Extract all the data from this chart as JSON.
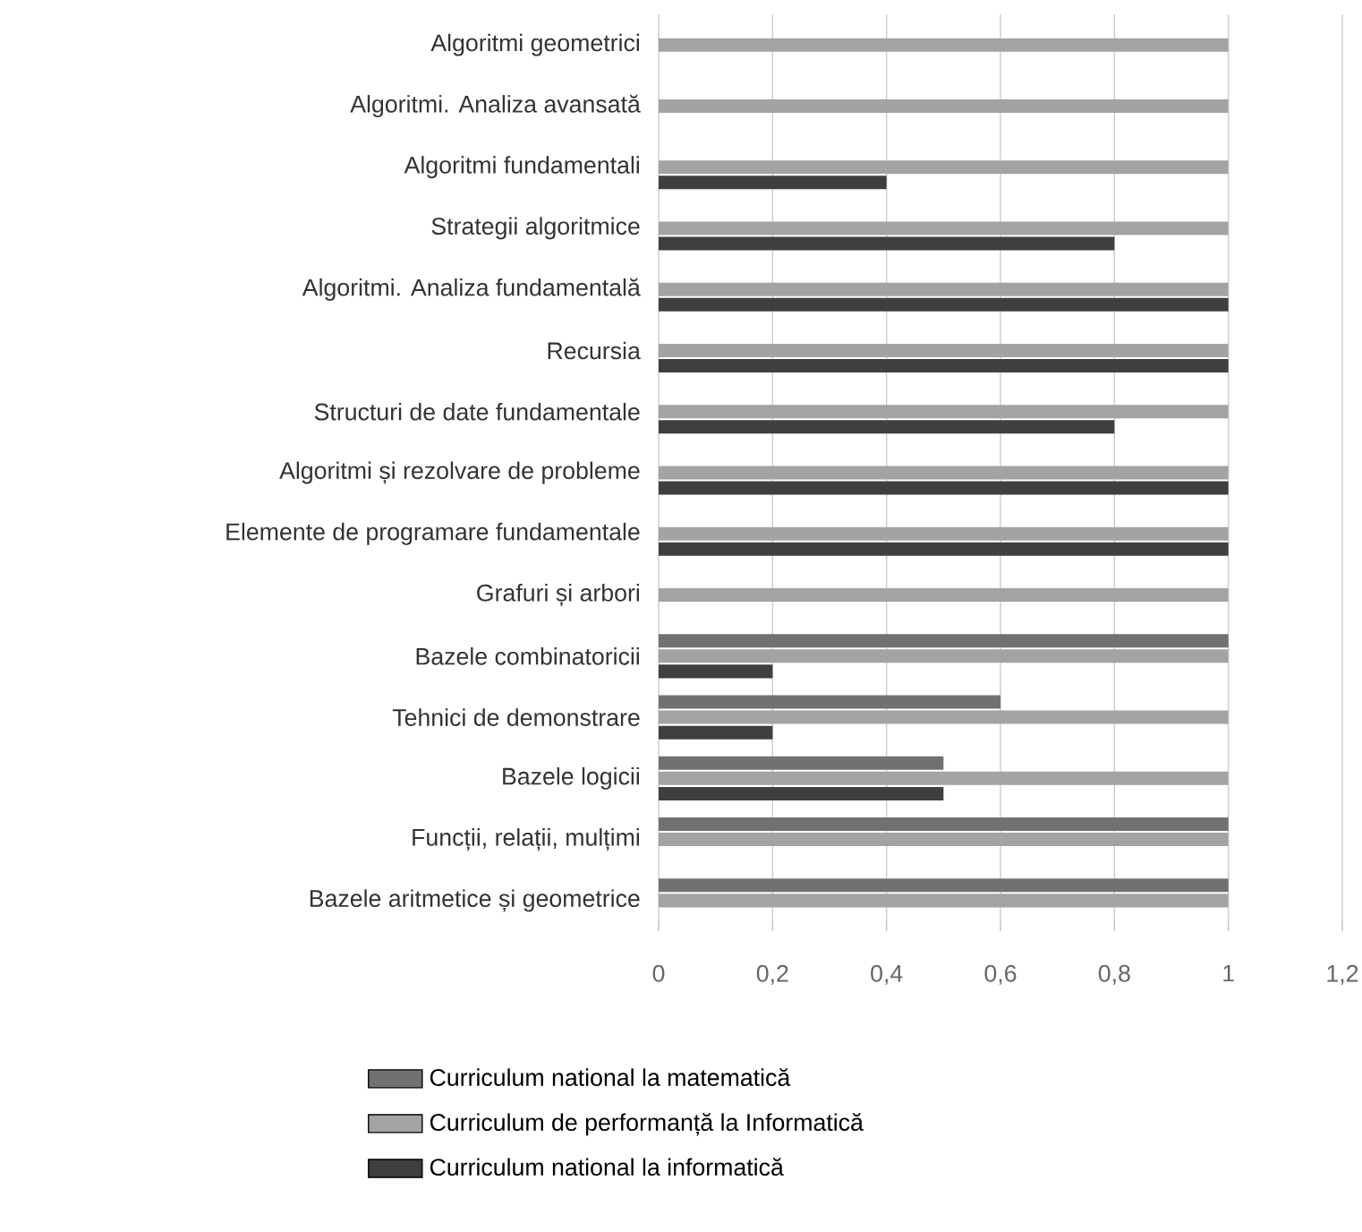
{
  "chart_data": {
    "type": "bar",
    "orientation": "horizontal",
    "categories": [
      "Algoritmi geometrici",
      "Algoritmi. Analiza avansată",
      "Algoritmi fundamentali",
      "Strategii algoritmice",
      "Algoritmi. Analiza fundamentală",
      "Recursia",
      "Structuri de date fundamentale",
      "Algoritmi și rezolvare de probleme",
      "Elemente de programare fundamentale",
      "Grafuri și arbori",
      "Bazele combinatoricii",
      "Tehnici de demonstrare",
      "Bazele logicii",
      "Funcții, relații, mulțimi",
      "Bazele aritmetice și geometrice"
    ],
    "series": [
      {
        "name": "Curriculum national la matematică",
        "color": "#717171",
        "values": [
          null,
          null,
          null,
          null,
          null,
          null,
          null,
          null,
          null,
          null,
          1,
          0.6,
          0.5,
          1,
          1
        ]
      },
      {
        "name": "Curriculum de performanță la Informatică",
        "color": "#a3a3a3",
        "values": [
          1,
          1,
          1,
          1,
          1,
          1,
          1,
          1,
          1,
          1,
          1,
          1,
          1,
          1,
          1
        ]
      },
      {
        "name": "Curriculum national la informatică",
        "color": "#3f3f3f",
        "values": [
          null,
          null,
          0.4,
          0.8,
          1,
          1,
          0.8,
          1,
          1,
          null,
          0.2,
          0.2,
          0.5,
          null,
          null
        ]
      }
    ],
    "xlim": [
      0,
      1.2
    ],
    "xticks": [
      0,
      {
        "value": 0.2,
        "label": "0,2"
      },
      {
        "value": 0.4,
        "label": "0,4"
      },
      {
        "value": 0.6,
        "label": "0,6"
      },
      {
        "value": 0.8,
        "label": "0,8"
      },
      1,
      {
        "value": 1.2,
        "label": "1,2"
      }
    ],
    "grid": "x",
    "legend": "bottom"
  }
}
